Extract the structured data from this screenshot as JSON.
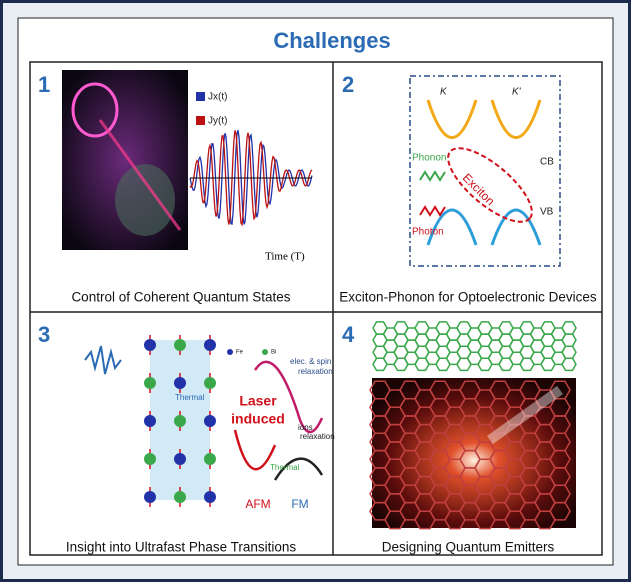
{
  "title": "Challenges",
  "panels": [
    {
      "number": "1",
      "caption": "Control of Coherent Quantum States",
      "labels": [
        "Jx(t)",
        "Jy(t)",
        "Time (T)"
      ]
    },
    {
      "number": "2",
      "caption": "Exciton-Phonon for Optoelectronic Devices",
      "labels": [
        "K",
        "K'",
        "CB",
        "VB",
        "Phonon",
        "Photon",
        "Exciton"
      ]
    },
    {
      "number": "3",
      "caption": "Insight into Ultrafast Phase Transitions",
      "labels": [
        "Thermal",
        "Laser",
        "induced",
        "AFM",
        "FM",
        "Thermal",
        "elec. & spin",
        "relaxation",
        "ions",
        "relaxation",
        "Fe",
        "Bi"
      ]
    },
    {
      "number": "4",
      "caption": "Designing Quantum Emitters"
    }
  ]
}
